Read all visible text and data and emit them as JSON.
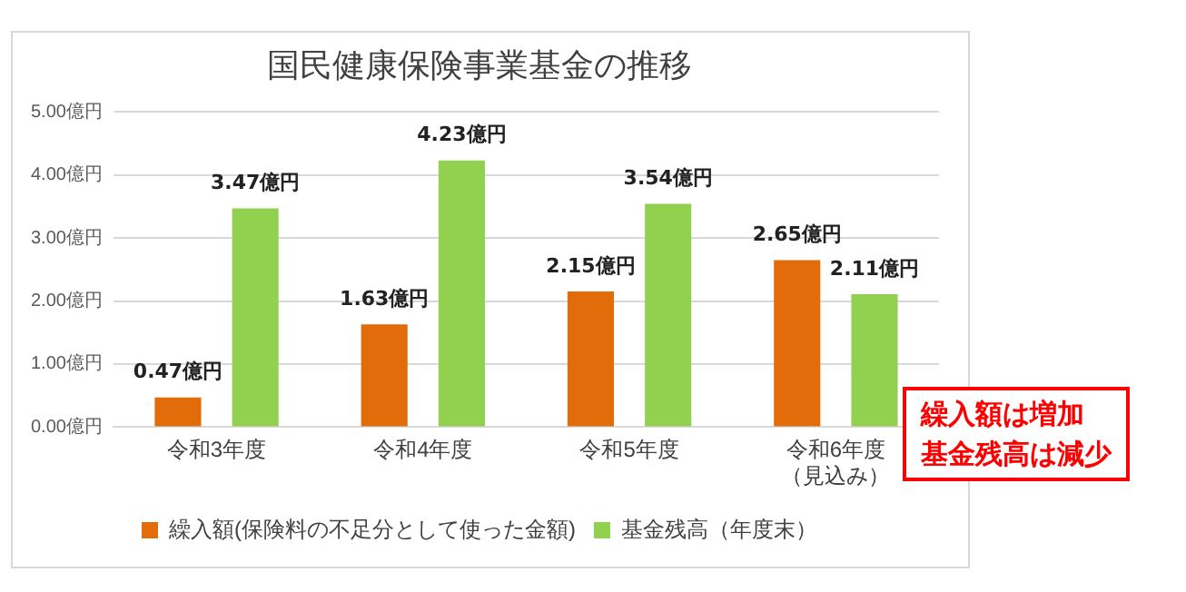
{
  "chart_data": {
    "type": "bar",
    "title": "国民健康保険事業基金の推移",
    "categories": [
      "令和3年度",
      "令和4年度",
      "令和5年度",
      "令和6年度（見込み）"
    ],
    "series": [
      {
        "name": "繰入額(保険料の不足分として使った金額)",
        "color": "#e36c0a",
        "values": [
          0.47,
          1.63,
          2.15,
          2.65
        ],
        "value_labels": [
          "0.47億円",
          "1.63億円",
          "2.15億円",
          "2.65億円"
        ]
      },
      {
        "name": "基金残高（年度末）",
        "color": "#92d050",
        "values": [
          3.47,
          4.23,
          3.54,
          2.11
        ],
        "value_labels": [
          "3.47億円",
          "4.23億円",
          "3.54億円",
          "2.11億円"
        ]
      }
    ],
    "ylim": [
      0,
      5
    ],
    "yticks": [
      {
        "value": 0,
        "label": "0.00億円"
      },
      {
        "value": 1,
        "label": "1.00億円"
      },
      {
        "value": 2,
        "label": "2.00億円"
      },
      {
        "value": 3,
        "label": "3.00億円"
      },
      {
        "value": 4,
        "label": "4.00億円"
      },
      {
        "value": 5,
        "label": "5.00億円"
      }
    ],
    "grid": "y",
    "legend": "bottom",
    "annotations": [
      "繰入額は増加",
      "基金残高は減少"
    ]
  }
}
